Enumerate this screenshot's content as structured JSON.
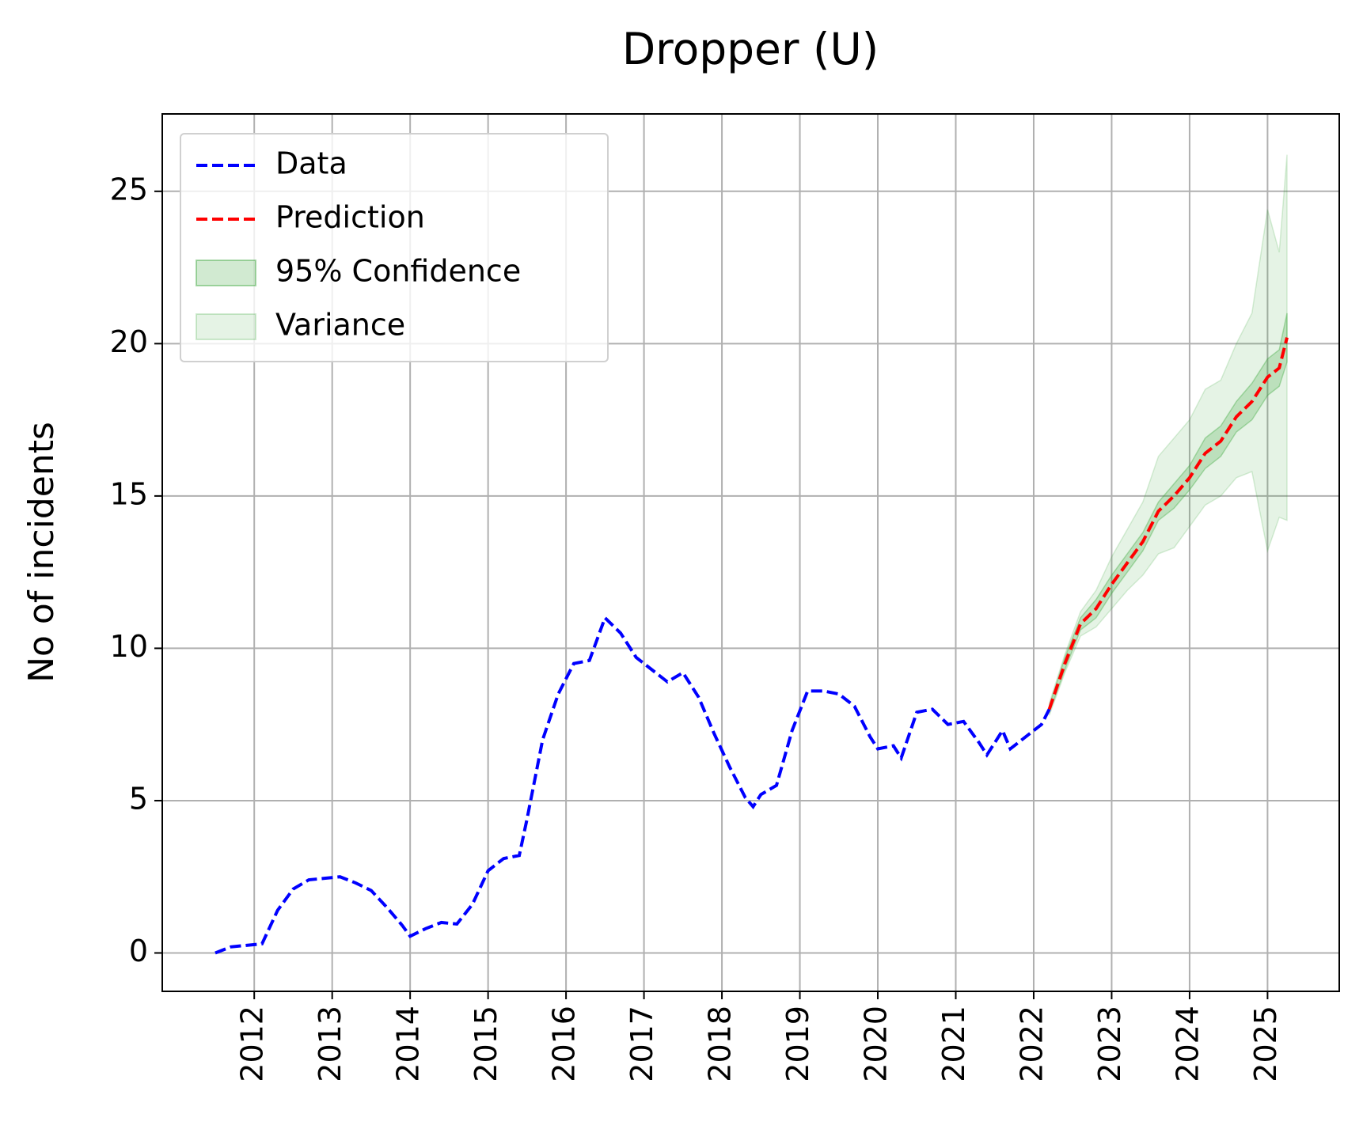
{
  "chart_data": {
    "type": "line",
    "title": "Dropper (U)",
    "y_label": "No of incidents",
    "xlim": [
      2010.82,
      2025.92
    ],
    "ylim": [
      -1.26,
      27.54
    ],
    "xticks": [
      2012,
      2013,
      2014,
      2015,
      2016,
      2017,
      2018,
      2019,
      2020,
      2021,
      2022,
      2023,
      2024,
      2025
    ],
    "yticks": [
      0,
      5,
      10,
      15,
      20,
      25
    ],
    "grid": true,
    "legend": "upper-left",
    "series": [
      {
        "name": "Data",
        "color": "#0000ff",
        "kind": "line",
        "x": [
          2011.5,
          2011.7,
          2011.9,
          2012.1,
          2012.3,
          2012.5,
          2012.7,
          2012.9,
          2013.1,
          2013.3,
          2013.5,
          2013.7,
          2013.9,
          2014.0,
          2014.2,
          2014.4,
          2014.6,
          2014.8,
          2015.0,
          2015.2,
          2015.4,
          2015.5,
          2015.7,
          2015.9,
          2016.1,
          2016.3,
          2016.5,
          2016.7,
          2016.9,
          2017.1,
          2017.3,
          2017.5,
          2017.7,
          2017.9,
          2018.1,
          2018.3,
          2018.4,
          2018.5,
          2018.7,
          2018.9,
          2019.1,
          2019.3,
          2019.5,
          2019.7,
          2019.9,
          2020.0,
          2020.2,
          2020.3,
          2020.5,
          2020.7,
          2020.9,
          2021.1,
          2021.3,
          2021.4,
          2021.6,
          2021.7,
          2021.9,
          2022.1,
          2022.2
        ],
        "values": [
          0,
          0.2,
          0.25,
          0.3,
          1.4,
          2.1,
          2.4,
          2.45,
          2.5,
          2.3,
          2.05,
          1.5,
          0.9,
          0.55,
          0.8,
          1.0,
          0.95,
          1.6,
          2.7,
          3.1,
          3.2,
          4.4,
          7.0,
          8.5,
          9.5,
          9.6,
          11.0,
          10.5,
          9.7,
          9.3,
          8.9,
          9.2,
          8.4,
          7.2,
          6.1,
          5.1,
          4.8,
          5.2,
          5.5,
          7.3,
          8.6,
          8.6,
          8.5,
          8.1,
          7.1,
          6.7,
          6.8,
          6.4,
          7.9,
          8.0,
          7.5,
          7.6,
          6.9,
          6.5,
          7.3,
          6.7,
          7.1,
          7.5,
          8.0
        ]
      },
      {
        "name": "Prediction",
        "color": "#ff0000",
        "kind": "line",
        "x": [
          2022.2,
          2022.4,
          2022.6,
          2022.8,
          2023.0,
          2023.2,
          2023.4,
          2023.6,
          2023.8,
          2024.0,
          2024.2,
          2024.4,
          2024.6,
          2024.8,
          2025.0,
          2025.15,
          2025.25
        ],
        "values": [
          8.0,
          9.5,
          10.8,
          11.3,
          12.1,
          12.8,
          13.5,
          14.5,
          15.0,
          15.6,
          16.4,
          16.8,
          17.6,
          18.1,
          18.9,
          19.2,
          20.2
        ]
      },
      {
        "name": "95% Confidence",
        "color": "#2ca02c",
        "kind": "band",
        "opacity": 0.22,
        "x": [
          2022.2,
          2022.4,
          2022.6,
          2022.8,
          2023.0,
          2023.2,
          2023.4,
          2023.6,
          2023.8,
          2024.0,
          2024.2,
          2024.4,
          2024.6,
          2024.8,
          2025.0,
          2025.15,
          2025.25
        ],
        "lower": [
          7.9,
          9.3,
          10.6,
          11.0,
          11.8,
          12.5,
          13.2,
          14.2,
          14.6,
          15.2,
          15.9,
          16.3,
          17.1,
          17.5,
          18.3,
          18.6,
          19.4
        ],
        "upper": [
          8.1,
          9.7,
          11.0,
          11.6,
          12.4,
          13.1,
          13.8,
          14.8,
          15.4,
          16.0,
          16.9,
          17.3,
          18.1,
          18.7,
          19.5,
          19.8,
          21.0
        ]
      },
      {
        "name": "Variance",
        "color": "#2ca02c",
        "kind": "band",
        "opacity": 0.12,
        "x": [
          2022.2,
          2022.4,
          2022.6,
          2022.8,
          2023.0,
          2023.2,
          2023.4,
          2023.6,
          2023.8,
          2024.0,
          2024.2,
          2024.4,
          2024.6,
          2024.8,
          2025.0,
          2025.15,
          2025.25
        ],
        "lower": [
          7.8,
          9.2,
          10.4,
          10.7,
          11.3,
          11.9,
          12.4,
          13.1,
          13.3,
          14.0,
          14.7,
          15.0,
          15.6,
          15.8,
          13.2,
          14.3,
          14.2
        ],
        "upper": [
          8.2,
          9.8,
          11.2,
          11.9,
          13.0,
          13.9,
          14.8,
          16.3,
          16.9,
          17.5,
          18.5,
          18.8,
          20.0,
          21.0,
          24.4,
          23.0,
          26.2
        ]
      }
    ]
  }
}
